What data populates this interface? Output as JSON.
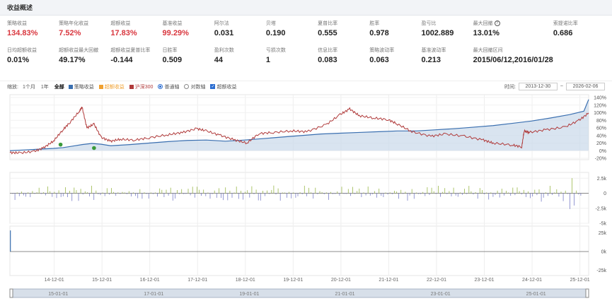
{
  "header": {
    "title": "收益概述"
  },
  "metrics": [
    {
      "label": "策略收益",
      "value": "134.83%",
      "color": "red"
    },
    {
      "label": "策略年化收益",
      "value": "7.52%",
      "color": "red"
    },
    {
      "label": "超额收益",
      "value": "17.83%",
      "color": "red"
    },
    {
      "label": "基准收益",
      "value": "99.29%",
      "color": "red"
    },
    {
      "label": "阿尔法",
      "value": "0.031",
      "color": ""
    },
    {
      "label": "贝塔",
      "value": "0.190",
      "color": ""
    },
    {
      "label": "夏普比率",
      "value": "0.555",
      "color": ""
    },
    {
      "label": "胜率",
      "value": "0.978",
      "color": ""
    },
    {
      "label": "盈亏比",
      "value": "1002.889",
      "color": ""
    },
    {
      "label": "最大回撤",
      "value": "13.01%",
      "color": "",
      "help": true
    },
    {
      "label": "索提诺比率",
      "value": "0.686",
      "color": ""
    },
    {
      "label": "日均超额收益",
      "value": "0.01%",
      "color": ""
    },
    {
      "label": "超额收益最大回撤",
      "value": "49.17%",
      "color": ""
    },
    {
      "label": "超额收益夏普比率",
      "value": "-0.144",
      "color": ""
    },
    {
      "label": "日胜率",
      "value": "0.509",
      "color": ""
    },
    {
      "label": "盈利次数",
      "value": "44",
      "color": ""
    },
    {
      "label": "亏损次数",
      "value": "1",
      "color": ""
    },
    {
      "label": "信息比率",
      "value": "0.083",
      "color": ""
    },
    {
      "label": "策略波动率",
      "value": "0.063",
      "color": ""
    },
    {
      "label": "基准波动率",
      "value": "0.213",
      "color": ""
    },
    {
      "label": "最大回撤区间",
      "value": "2015/06/12,2016/01/28",
      "color": ""
    }
  ],
  "controls": {
    "zoom_label": "缩放:",
    "zoom_options": [
      "1个月",
      "1年",
      "全部"
    ],
    "legend": [
      {
        "label": "策略收益",
        "color": "#3a6fb0"
      },
      {
        "label": "超额收益",
        "color": "#f0a030"
      },
      {
        "label": "沪深300",
        "color": "#b03a3a"
      }
    ],
    "axis_normal": "普通轴",
    "axis_log": "对数轴",
    "excess_check": "超额收益",
    "time_label": "时间:",
    "date_from": "2013-12-30",
    "date_sep": "~",
    "date_to": "2026-02-06"
  },
  "chart_data": {
    "type": "line",
    "x_ticks": [
      "14-12-01",
      "15-12-01",
      "16-12-01",
      "17-12-01",
      "18-12-01",
      "19-12-01",
      "20-12-01",
      "21-12-01",
      "22-12-01",
      "23-12-01",
      "24-12-01",
      "25-12-01"
    ],
    "navigator_ticks": [
      "15-01-01",
      "17-01-01",
      "19-01-01",
      "21-01-01",
      "23-01-01",
      "25-01-01"
    ],
    "y_ticks_main": [
      "140%",
      "120%",
      "100%",
      "80%",
      "60%",
      "40%",
      "20%",
      "0%",
      "-20%"
    ],
    "ylim_main": [
      -20,
      140
    ],
    "y_ticks_mid": [
      "2.5k",
      "0",
      "-2.5k",
      "-5k"
    ],
    "ylim_mid": [
      -5000,
      3000
    ],
    "y_ticks_bot": [
      "25k",
      "0k",
      "-25k"
    ],
    "ylim_bot": [
      -30000,
      30000
    ],
    "xlim": [
      2013.99,
      2026.1
    ],
    "series": [
      {
        "name": "策略收益",
        "color": "#3a6fb0",
        "x": [
          2013.99,
          2014.3,
          2014.6,
          2014.9,
          2015.1,
          2015.3,
          2015.5,
          2015.7,
          2015.9,
          2016.1,
          2016.5,
          2016.9,
          2017.3,
          2017.7,
          2018.1,
          2018.5,
          2018.9,
          2019.3,
          2019.7,
          2020.1,
          2020.5,
          2020.9,
          2021.3,
          2021.7,
          2022.1,
          2022.5,
          2022.9,
          2023.3,
          2023.7,
          2024.1,
          2024.5,
          2024.9,
          2025.3,
          2025.7,
          2026.0,
          2026.1
        ],
        "values": [
          0,
          2,
          4,
          6,
          8,
          12,
          16,
          19,
          17,
          13,
          16,
          20,
          24,
          27,
          28,
          25,
          28,
          32,
          36,
          40,
          44,
          46,
          48,
          50,
          52,
          52,
          55,
          58,
          62,
          66,
          72,
          78,
          86,
          95,
          104,
          134.8
        ]
      },
      {
        "name": "沪深300",
        "color": "#b03a3a",
        "x": [
          2013.99,
          2014.2,
          2014.5,
          2014.7,
          2014.9,
          2015.1,
          2015.25,
          2015.45,
          2015.5,
          2015.6,
          2015.75,
          2015.9,
          2016.1,
          2016.3,
          2016.6,
          2016.9,
          2017.3,
          2017.6,
          2017.9,
          2018.1,
          2018.4,
          2018.7,
          2018.95,
          2019.2,
          2019.5,
          2019.9,
          2020.2,
          2020.6,
          2020.9,
          2021.1,
          2021.3,
          2021.6,
          2021.9,
          2022.1,
          2022.4,
          2022.8,
          2023.1,
          2023.5,
          2023.9,
          2024.1,
          2024.5,
          2024.7,
          2024.75,
          2024.85,
          2025.2,
          2025.6,
          2025.9,
          2026.1
        ],
        "values": [
          -5,
          -6,
          -2,
          8,
          25,
          55,
          75,
          105,
          115,
          60,
          70,
          35,
          25,
          30,
          28,
          34,
          42,
          48,
          58,
          52,
          40,
          28,
          20,
          45,
          48,
          52,
          50,
          68,
          95,
          110,
          92,
          86,
          82,
          70,
          50,
          38,
          44,
          38,
          28,
          20,
          15,
          10,
          52,
          48,
          55,
          62,
          80,
          99.3
        ]
      }
    ],
    "markers": [
      {
        "x": 2015.05,
        "y": 16,
        "color": "#3a9a3a"
      },
      {
        "x": 2015.75,
        "y": 7,
        "color": "#3a9a3a"
      }
    ],
    "excess_daily": "bars",
    "position_spike": {
      "x": 2014.0,
      "value": 28000
    }
  }
}
